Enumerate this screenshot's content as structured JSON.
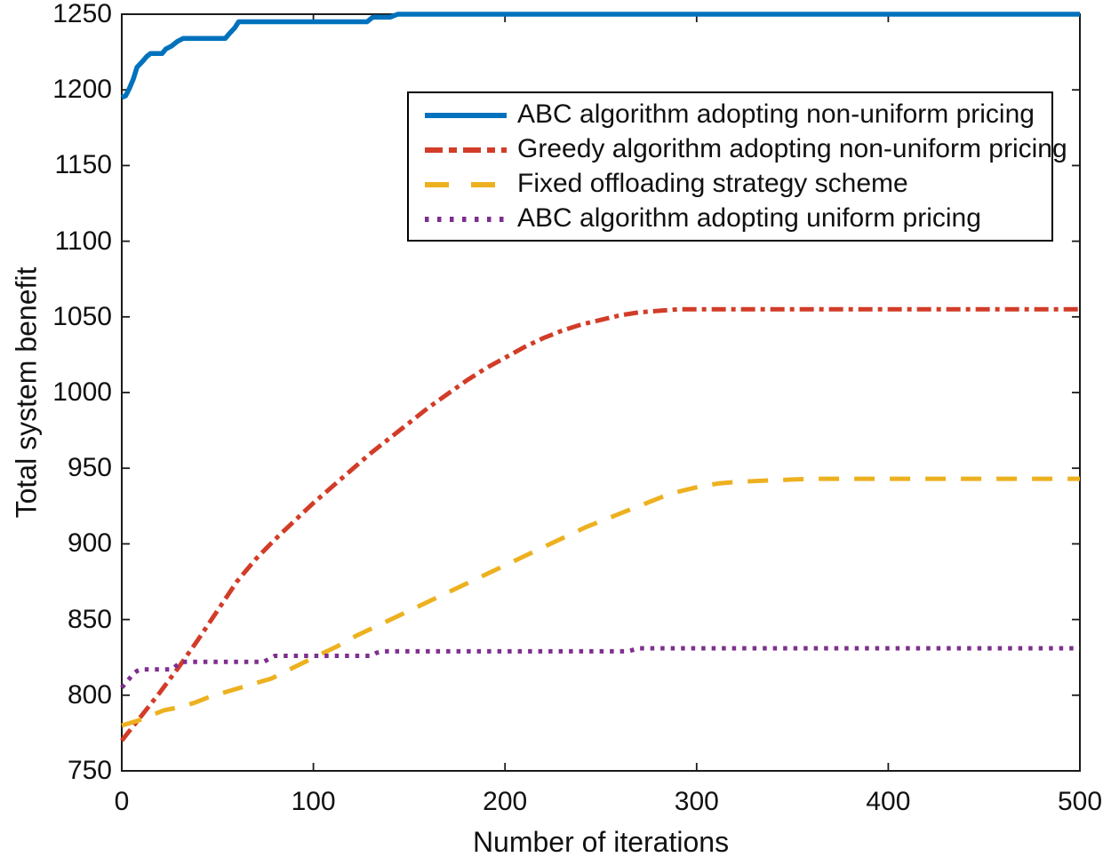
{
  "figure": {
    "background": "#ffffff",
    "axis_color": "#1a1a1a",
    "text_color": "#111111"
  },
  "chart_data": {
    "type": "line",
    "title": "",
    "xlabel": "Number of iterations",
    "ylabel": "Total system benefit",
    "xlim": [
      0,
      500
    ],
    "ylim": [
      750,
      1250
    ],
    "xticks": [
      0,
      100,
      200,
      300,
      400,
      500
    ],
    "yticks": [
      750,
      800,
      850,
      900,
      950,
      1000,
      1050,
      1100,
      1150,
      1200,
      1250
    ],
    "grid": false,
    "legend": {
      "position": "upper-center-inside",
      "border_color": "#000000",
      "background": "#ffffff"
    },
    "series": [
      {
        "name": "ABC algorithm adopting non-uniform pricing",
        "color": "#0072BD",
        "style": "solid",
        "width": 5.5,
        "points": [
          [
            0,
            1195
          ],
          [
            2,
            1196
          ],
          [
            4,
            1201
          ],
          [
            6,
            1207
          ],
          [
            8,
            1215
          ],
          [
            11,
            1219
          ],
          [
            13,
            1222
          ],
          [
            15,
            1224
          ],
          [
            21,
            1224
          ],
          [
            23,
            1227
          ],
          [
            26,
            1229
          ],
          [
            29,
            1232
          ],
          [
            32,
            1234
          ],
          [
            54,
            1234
          ],
          [
            56,
            1237
          ],
          [
            59,
            1241
          ],
          [
            61,
            1245
          ],
          [
            128,
            1245
          ],
          [
            131,
            1248
          ],
          [
            140,
            1248
          ],
          [
            144,
            1250
          ],
          [
            500,
            1250
          ]
        ]
      },
      {
        "name": "Greedy algorithm adopting non-uniform pricing",
        "color": "#D23C28",
        "style": "dashdot",
        "width": 5,
        "points": [
          [
            0,
            770
          ],
          [
            10,
            786
          ],
          [
            20,
            802
          ],
          [
            30,
            819
          ],
          [
            40,
            837
          ],
          [
            50,
            856
          ],
          [
            60,
            875
          ],
          [
            70,
            890
          ],
          [
            80,
            903
          ],
          [
            90,
            915
          ],
          [
            100,
            927
          ],
          [
            110,
            938
          ],
          [
            120,
            949
          ],
          [
            130,
            960
          ],
          [
            140,
            970
          ],
          [
            150,
            980
          ],
          [
            160,
            990
          ],
          [
            170,
            999
          ],
          [
            180,
            1008
          ],
          [
            190,
            1016
          ],
          [
            200,
            1023
          ],
          [
            210,
            1030
          ],
          [
            220,
            1036
          ],
          [
            230,
            1041
          ],
          [
            240,
            1045
          ],
          [
            250,
            1048
          ],
          [
            260,
            1051
          ],
          [
            270,
            1053
          ],
          [
            280,
            1054
          ],
          [
            290,
            1055
          ],
          [
            300,
            1055
          ],
          [
            500,
            1055
          ]
        ]
      },
      {
        "name": "Fixed offloading strategy scheme",
        "color": "#EDB120",
        "style": "dashed",
        "width": 5,
        "points": [
          [
            0,
            780
          ],
          [
            8,
            783
          ],
          [
            14,
            786
          ],
          [
            22,
            790
          ],
          [
            30,
            792
          ],
          [
            38,
            795
          ],
          [
            46,
            799
          ],
          [
            54,
            802
          ],
          [
            62,
            805
          ],
          [
            70,
            808
          ],
          [
            78,
            811
          ],
          [
            86,
            816
          ],
          [
            94,
            821
          ],
          [
            102,
            826
          ],
          [
            112,
            832
          ],
          [
            122,
            839
          ],
          [
            132,
            845
          ],
          [
            142,
            851
          ],
          [
            152,
            857
          ],
          [
            162,
            863
          ],
          [
            172,
            869
          ],
          [
            182,
            875
          ],
          [
            192,
            881
          ],
          [
            202,
            887
          ],
          [
            212,
            893
          ],
          [
            222,
            899
          ],
          [
            232,
            905
          ],
          [
            242,
            911
          ],
          [
            252,
            916
          ],
          [
            262,
            921
          ],
          [
            272,
            926
          ],
          [
            282,
            931
          ],
          [
            292,
            935
          ],
          [
            302,
            938
          ],
          [
            312,
            940
          ],
          [
            322,
            941
          ],
          [
            340,
            942
          ],
          [
            360,
            943
          ],
          [
            500,
            943
          ]
        ]
      },
      {
        "name": "ABC algorithm adopting uniform pricing",
        "color": "#7E2F8E",
        "style": "dotted",
        "width": 5,
        "points": [
          [
            0,
            805
          ],
          [
            2,
            808
          ],
          [
            4,
            811
          ],
          [
            6,
            814
          ],
          [
            8,
            816
          ],
          [
            10,
            817
          ],
          [
            26,
            817
          ],
          [
            28,
            819
          ],
          [
            31,
            822
          ],
          [
            74,
            822
          ],
          [
            77,
            824
          ],
          [
            80,
            826
          ],
          [
            130,
            826
          ],
          [
            133,
            828
          ],
          [
            136,
            829
          ],
          [
            264,
            829
          ],
          [
            267,
            830
          ],
          [
            270,
            831
          ],
          [
            500,
            831
          ]
        ]
      }
    ]
  }
}
